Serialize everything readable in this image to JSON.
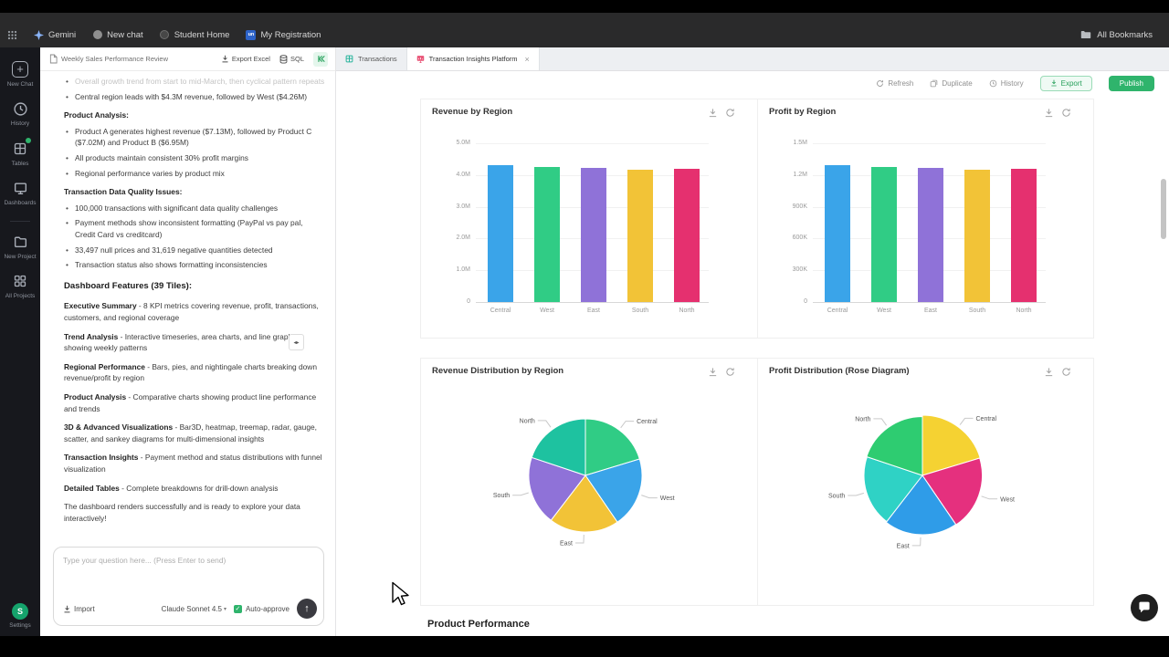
{
  "bookmarks_bar": {
    "items": [
      {
        "label": "Gemini"
      },
      {
        "label": "New chat"
      },
      {
        "label": "Student Home"
      },
      {
        "label": "My Registration",
        "icon_text": "un"
      }
    ],
    "all_bookmarks_label": "All Bookmarks"
  },
  "rail": {
    "items": [
      {
        "label": "New Chat"
      },
      {
        "label": "History"
      },
      {
        "label": "Tables"
      },
      {
        "label": "Dashboards"
      },
      {
        "label": "New Project"
      },
      {
        "label": "All Projects"
      }
    ],
    "settings_label": "Settings",
    "avatar_letter": "S"
  },
  "panel": {
    "doc_tab_title": "Weekly Sales Performance Review",
    "export_excel_label": "Export Excel",
    "sql_label": "SQL",
    "blocks": [
      {
        "type": "bullet-faded",
        "text": "Overall growth trend from start to mid-March, then cyclical pattern repeats"
      },
      {
        "type": "bullet",
        "text": "Central region leads with $4.3M revenue, followed by West ($4.26M)"
      },
      {
        "type": "heading",
        "text": "Product Analysis:"
      },
      {
        "type": "bullet",
        "text": "Product A generates highest revenue ($7.13M), followed by Product C ($7.02M) and Product B ($6.95M)"
      },
      {
        "type": "bullet",
        "text": "All products maintain consistent 30% profit margins"
      },
      {
        "type": "bullet",
        "text": "Regional performance varies by product mix"
      },
      {
        "type": "heading",
        "text": "Transaction Data Quality Issues:"
      },
      {
        "type": "bullet",
        "text": "100,000 transactions with significant data quality challenges"
      },
      {
        "type": "bullet",
        "text": "Payment methods show inconsistent formatting (PayPal vs pay pal, Credit Card vs creditcard)"
      },
      {
        "type": "bullet",
        "text": "33,497 null prices and 31,619 negative quantities detected"
      },
      {
        "type": "bullet",
        "text": "Transaction status also shows formatting inconsistencies"
      },
      {
        "type": "heading-lg",
        "text": "Dashboard Features (39 Tiles):"
      },
      {
        "type": "lead",
        "lead": "Executive Summary",
        "text": "8 KPI metrics covering revenue, profit, transactions, customers, and regional coverage"
      },
      {
        "type": "lead",
        "lead": "Trend Analysis",
        "text": "Interactive timeseries, area charts, and line graphs showing weekly patterns"
      },
      {
        "type": "lead",
        "lead": "Regional Performance",
        "text": "Bars, pies, and nightingale charts breaking down revenue/profit by region"
      },
      {
        "type": "lead",
        "lead": "Product Analysis",
        "text": "Comparative charts showing product line performance and trends"
      },
      {
        "type": "lead",
        "lead": "3D & Advanced Visualizations",
        "text": "Bar3D, heatmap, treemap, radar, gauge, scatter, and sankey diagrams for multi-dimensional insights"
      },
      {
        "type": "lead",
        "lead": "Transaction Insights",
        "text": "Payment method and status distributions with funnel visualization"
      },
      {
        "type": "lead",
        "lead": "Detailed Tables",
        "text": "Complete breakdowns for drill-down analysis"
      },
      {
        "type": "para",
        "text": "The dashboard renders successfully and is ready to explore your data interactively!"
      }
    ],
    "input": {
      "placeholder": "Type your question here... (Press Enter to send)",
      "import_label": "Import",
      "model_label": "Claude Sonnet 4.5",
      "auto_approve_label": "Auto-approve"
    }
  },
  "main": {
    "tabs": [
      {
        "label": "Transactions"
      },
      {
        "label": "Transaction Insights Platform",
        "active": true
      }
    ],
    "toolbar": {
      "refresh": "Refresh",
      "duplicate": "Duplicate",
      "history": "History",
      "export": "Export",
      "publish": "Publish"
    },
    "section_heading": "Product Performance"
  },
  "chart_data": [
    {
      "id": "revenue_by_region",
      "type": "bar",
      "title": "Revenue by Region",
      "categories": [
        "Central",
        "West",
        "East",
        "South",
        "North"
      ],
      "values": [
        4.3,
        4.26,
        4.22,
        4.18,
        4.2
      ],
      "value_unit": "M",
      "ymax": 5.0,
      "ytick_labels": [
        "5.0M",
        "4.0M",
        "3.0M",
        "2.0M",
        "1.0M",
        "0"
      ],
      "colors": [
        "#3aa4e9",
        "#30cc85",
        "#8f72d8",
        "#f2c337",
        "#e5306f"
      ]
    },
    {
      "id": "profit_by_region",
      "type": "bar",
      "title": "Profit by Region",
      "categories": [
        "Central",
        "West",
        "East",
        "South",
        "North"
      ],
      "values": [
        1.29,
        1.28,
        1.27,
        1.25,
        1.26
      ],
      "value_unit": "M",
      "ymax": 1.5,
      "ytick_labels": [
        "1.5M",
        "1.2M",
        "900K",
        "600K",
        "300K",
        "0"
      ],
      "colors": [
        "#3aa4e9",
        "#30cc85",
        "#8f72d8",
        "#f2c337",
        "#e5306f"
      ]
    },
    {
      "id": "revenue_distribution",
      "type": "pie",
      "title": "Revenue Distribution by Region",
      "labels": [
        "Central",
        "West",
        "East",
        "South",
        "North"
      ],
      "values": [
        4.3,
        4.26,
        4.22,
        4.18,
        4.2
      ],
      "colors": [
        "#30cc85",
        "#3aa4e9",
        "#f2c337",
        "#8f72d8",
        "#1ec2a0"
      ]
    },
    {
      "id": "profit_distribution",
      "type": "rose",
      "title": "Profit Distribution (Rose Diagram)",
      "labels": [
        "Central",
        "West",
        "East",
        "South",
        "North"
      ],
      "values": [
        1.29,
        1.28,
        1.27,
        1.25,
        1.26
      ],
      "colors": [
        "#f5d232",
        "#e5307e",
        "#2f9ce8",
        "#2fd2c5",
        "#2ecc71"
      ]
    }
  ]
}
